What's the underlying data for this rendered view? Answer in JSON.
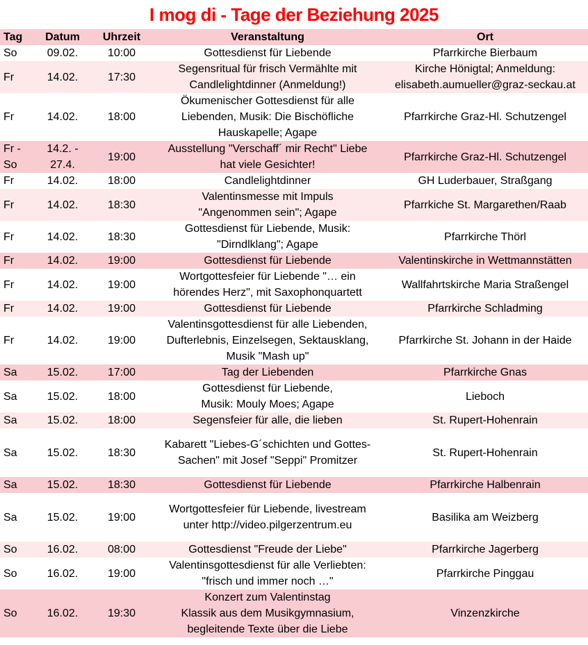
{
  "title": "I mog di - Tage der Beziehung 2025",
  "colors": {
    "title": "#ff0000",
    "header_bg": "#f8ccd1",
    "row_pink_strong": "#f8ccd1",
    "row_pink_soft": "#fde9e9",
    "text": "#000000"
  },
  "table": {
    "headers": {
      "tag": "Tag",
      "datum": "Datum",
      "uhrzeit": "Uhrzeit",
      "veranstaltung": "Veranstaltung",
      "ort": "Ort"
    },
    "rows": [
      {
        "tag": "So",
        "datum": "09.02.",
        "uhrzeit": "10:00",
        "veranstaltung": "Gottesdienst für Liebende",
        "ort": "Pfarrkirche Bierbaum",
        "bg": "white",
        "spacious": false
      },
      {
        "tag": "Fr",
        "datum": "14.02.",
        "uhrzeit": "17:30",
        "veranstaltung": "Segensritual für frisch Vermählte mit\nCandlelightdinner (Anmeldung!)",
        "ort": "Kirche Hönigtal; Anmeldung:\nelisabeth.aumueller@graz-seckau.at",
        "bg": "light",
        "spacious": false
      },
      {
        "tag": "Fr",
        "datum": "14.02.",
        "uhrzeit": "18:00",
        "veranstaltung": "Ökumenischer Gottesdienst für alle\nLiebenden, Musik: Die Bischöfliche\nHauskapelle; Agape",
        "ort": "Pfarrkirche Graz-Hl. Schutzengel",
        "bg": "white",
        "spacious": false
      },
      {
        "tag": "Fr -\nSo",
        "datum": "14.2. -\n27.4.",
        "uhrzeit": "19:00",
        "veranstaltung": "Ausstellung \"Verschaff´ mir Recht\" Liebe\nhat viele Gesichter!",
        "ort": "Pfarrkirche Graz-Hl. Schutzengel",
        "bg": "dark",
        "spacious": false
      },
      {
        "tag": "Fr",
        "datum": "14.02.",
        "uhrzeit": "18:00",
        "veranstaltung": "Candlelightdinner",
        "ort": "GH Luderbauer, Straßgang",
        "bg": "white",
        "spacious": false
      },
      {
        "tag": "Fr",
        "datum": "14.02.",
        "uhrzeit": "18:30",
        "veranstaltung": "Valentinsmesse mit Impuls\n\"Angenommen sein\"; Agape",
        "ort": "Pfarrkiche St. Margarethen/Raab",
        "bg": "light",
        "spacious": false
      },
      {
        "tag": "Fr",
        "datum": "14.02.",
        "uhrzeit": "18:30",
        "veranstaltung": "Gottesdienst für Liebende, Musik:\n\"Dirndlklang\"; Agape",
        "ort": "Pfarrkirche Thörl",
        "bg": "white",
        "spacious": false
      },
      {
        "tag": "Fr",
        "datum": "14.02.",
        "uhrzeit": "19:00",
        "veranstaltung": "Gottesdienst für Liebende",
        "ort": "Valentinskirche in Wettmannstätten",
        "bg": "dark",
        "spacious": false
      },
      {
        "tag": "Fr",
        "datum": "14.02.",
        "uhrzeit": "19:00",
        "veranstaltung": "Wortgottesfeier für Liebende \"… ein\nhörendes Herz\", mit Saxophonquartett",
        "ort": "Wallfahrtskirche Maria Straßengel",
        "bg": "white",
        "spacious": false
      },
      {
        "tag": "Fr",
        "datum": "14.02.",
        "uhrzeit": "19:00",
        "veranstaltung": "Gottesdienst für Liebende",
        "ort": "Pfarrkirche Schladming",
        "bg": "light",
        "spacious": false
      },
      {
        "tag": "Fr",
        "datum": "14.02.",
        "uhrzeit": "19:00",
        "veranstaltung": "Valentinsgottesdienst für alle Liebenden,\nDufterlebnis, Einzelsegen,  Sektausklang,\nMusik \"Mash up\"",
        "ort": "Pfarrkirche St. Johann in der Haide",
        "bg": "white",
        "spacious": false
      },
      {
        "tag": "Sa",
        "datum": "15.02.",
        "uhrzeit": "17:00",
        "veranstaltung": "Tag der Liebenden",
        "ort": "Pfarrkirche Gnas",
        "bg": "dark",
        "spacious": false
      },
      {
        "tag": "Sa",
        "datum": "15.02.",
        "uhrzeit": "18:00",
        "veranstaltung": "Gottesdienst für Liebende,\nMusik: Mouly Moes; Agape",
        "ort": "Lieboch",
        "bg": "white",
        "spacious": false
      },
      {
        "tag": "Sa",
        "datum": "15.02.",
        "uhrzeit": "18:00",
        "veranstaltung": "Segensfeier für alle, die lieben",
        "ort": "St. Rupert-Hohenrain",
        "bg": "light",
        "spacious": false
      },
      {
        "tag": "Sa",
        "datum": "15.02.",
        "uhrzeit": "18:30",
        "veranstaltung": "Kabarett \"Liebes-G´schichten und Gottes-\nSachen\" mit Josef \"Seppi\" Promitzer",
        "ort": "St. Rupert-Hohenrain",
        "bg": "white",
        "spacious": true
      },
      {
        "tag": "Sa",
        "datum": "15.02.",
        "uhrzeit": "18:30",
        "veranstaltung": "Gottesdienst für Liebende",
        "ort": "Pfarrkirche Halbenrain",
        "bg": "dark",
        "spacious": false
      },
      {
        "tag": "Sa",
        "datum": "15.02.",
        "uhrzeit": "19:00",
        "veranstaltung": "Wortgottesfeier für Liebende, livestream\nunter http://video.pilgerzentrum.eu",
        "ort": "Basilika am Weizberg",
        "bg": "white",
        "spacious": true
      },
      {
        "tag": "So",
        "datum": "16.02.",
        "uhrzeit": "08:00",
        "veranstaltung": "Gottesdienst \"Freude der Liebe\"",
        "ort": "Pfarrkirche Jagerberg",
        "bg": "light",
        "spacious": false
      },
      {
        "tag": "So",
        "datum": "16.02.",
        "uhrzeit": "19:00",
        "veranstaltung": "Valentinsgottesdienst für alle Verliebten:\n\"frisch und immer noch …\"",
        "ort": "Pfarrkirche Pinggau",
        "bg": "white",
        "spacious": false
      },
      {
        "tag": "So",
        "datum": "16.02.",
        "uhrzeit": "19:30",
        "veranstaltung": "Konzert zum Valentinstag\nKlassik aus dem Musikgymnasium,\nbegleitende Texte über die Liebe",
        "ort": "Vinzenzkirche",
        "bg": "dark",
        "spacious": false
      }
    ]
  }
}
